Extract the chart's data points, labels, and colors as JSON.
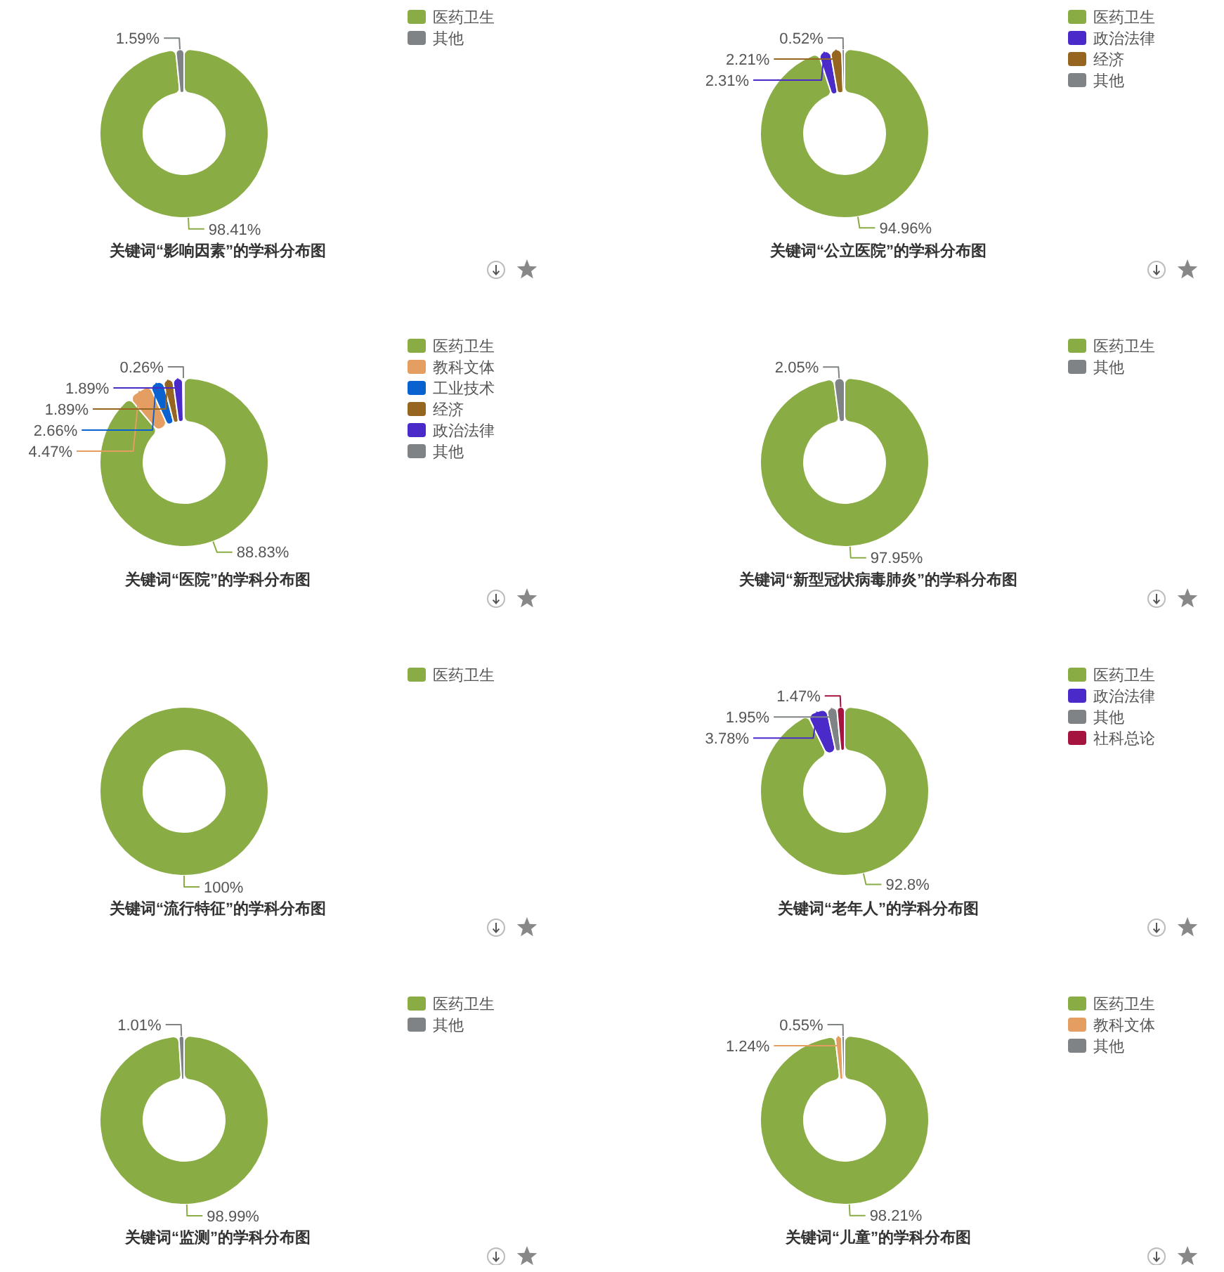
{
  "chart_data": [
    {
      "type": "donut",
      "title": "关键词“影响因素”的学科分布图",
      "categories": [
        "医药卫生",
        "其他"
      ],
      "values": [
        98.41,
        1.59
      ],
      "colors": [
        "#8aac44",
        "#7f8385"
      ],
      "value_labels": [
        "98.41%",
        "1.59%"
      ],
      "legend": "top right"
    },
    {
      "type": "donut",
      "title": "关键词“公立医院”的学科分布图",
      "categories": [
        "医药卫生",
        "政治法律",
        "经济",
        "其他"
      ],
      "values": [
        94.96,
        2.31,
        2.21,
        0.52
      ],
      "colors": [
        "#8aac44",
        "#4a2bc9",
        "#96651f",
        "#7f8385"
      ],
      "value_labels": [
        "94.96%",
        "2.31%",
        "2.21%",
        "0.52%"
      ],
      "legend": "top right"
    },
    {
      "type": "donut",
      "title": "关键词“医院”的学科分布图",
      "categories": [
        "医药卫生",
        "教科文体",
        "工业技术",
        "经济",
        "政治法律",
        "其他"
      ],
      "values": [
        88.83,
        4.47,
        2.66,
        1.89,
        1.89,
        0.26
      ],
      "colors": [
        "#8aac44",
        "#e49e62",
        "#0a62d0",
        "#96651f",
        "#4a2bc9",
        "#7f8385"
      ],
      "value_labels": [
        "88.83%",
        "4.47%",
        "2.66%",
        "1.89%",
        "1.89%",
        "0.26%"
      ],
      "legend": "top right"
    },
    {
      "type": "donut",
      "title": "关键词“新型冠状病毒肺炎”的学科分布图",
      "categories": [
        "医药卫生",
        "其他"
      ],
      "values": [
        97.95,
        2.05
      ],
      "colors": [
        "#8aac44",
        "#7f8385"
      ],
      "value_labels": [
        "97.95%",
        "2.05%"
      ],
      "legend": "top right"
    },
    {
      "type": "donut",
      "title": "关键词“流行特征”的学科分布图",
      "categories": [
        "医药卫生"
      ],
      "values": [
        100
      ],
      "colors": [
        "#8aac44"
      ],
      "value_labels": [
        "100%"
      ],
      "legend": "top right"
    },
    {
      "type": "donut",
      "title": "关键词“老年人”的学科分布图",
      "categories": [
        "医药卫生",
        "政治法律",
        "其他",
        "社科总论"
      ],
      "values": [
        92.8,
        3.78,
        1.95,
        1.47
      ],
      "colors": [
        "#8aac44",
        "#4a2bc9",
        "#7f8385",
        "#a5143f"
      ],
      "value_labels": [
        "92.8%",
        "3.78%",
        "1.95%",
        "1.47%"
      ],
      "legend": "top right"
    },
    {
      "type": "donut",
      "title": "关键词“监测”的学科分布图",
      "categories": [
        "医药卫生",
        "其他"
      ],
      "values": [
        98.99,
        1.01
      ],
      "colors": [
        "#8aac44",
        "#7f8385"
      ],
      "value_labels": [
        "98.99%",
        "1.01%"
      ],
      "legend": "top right"
    },
    {
      "type": "donut",
      "title": "关键词“儿童”的学科分布图",
      "categories": [
        "医药卫生",
        "教科文体",
        "其他"
      ],
      "values": [
        98.21,
        1.24,
        0.55
      ],
      "colors": [
        "#8aac44",
        "#e49e62",
        "#7f8385"
      ],
      "value_labels": [
        "98.21%",
        "1.24%",
        "0.55%"
      ],
      "legend": "top right"
    }
  ]
}
